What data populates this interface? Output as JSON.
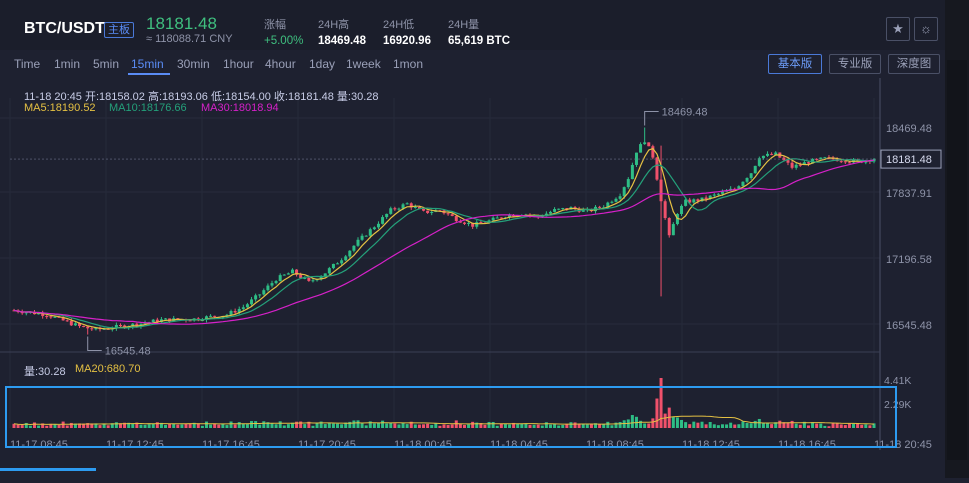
{
  "header": {
    "pair": "BTC/USDT",
    "board": "主板",
    "price": "18181.48",
    "cny": "≈ 118088.71 CNY",
    "stats": [
      {
        "label": "涨幅",
        "value": "+5.00%"
      },
      {
        "label": "24H高",
        "value": "18469.48"
      },
      {
        "label": "24H低",
        "value": "16920.96"
      },
      {
        "label": "24H量",
        "value": "65,619 BTC"
      }
    ],
    "icons": [
      "star-icon",
      "sun-icon"
    ]
  },
  "timeframes": [
    "Time",
    "1min",
    "5min",
    "15min",
    "30min",
    "1hour",
    "4hour",
    "1day",
    "1week",
    "1mon"
  ],
  "active_timeframe": "15min",
  "view_buttons": [
    "基本版",
    "专业版",
    "深度图"
  ],
  "active_view": "基本版",
  "colors": {
    "up": "#2ebd85",
    "down": "#f0516b",
    "ma5": "#e5c143",
    "ma10": "#24a07a",
    "ma30": "#d521c8",
    "ma20": "#e5c143",
    "accent": "#2d9bf0"
  },
  "chart_data": {
    "type": "candlestick",
    "ohlc_label": "11-18 20:45   开:18158.02  高:18193.06  低:18154.00  收:18181.48  量:30.28",
    "ma_legend": [
      {
        "name": "MA5",
        "value": "MA5:18190.52"
      },
      {
        "name": "MA10",
        "value": "MA10:18176.66"
      },
      {
        "name": "MA30",
        "value": "MA30:18018.94"
      }
    ],
    "y_ticks": [
      "18469.48",
      "17837.91",
      "17196.58",
      "16545.48"
    ],
    "ylim": [
      16420,
      18650
    ],
    "current_price_label": "18181.48",
    "high_annotation": "18469.48",
    "low_annotation": "16545.48",
    "x_ticks": [
      "11-17 08:45",
      "11-17 12:45",
      "11-17 16:45",
      "11-17 20:45",
      "11-18 00:45",
      "11-18 04:45",
      "11-18 08:45",
      "11-18 12:45",
      "11-18 16:45",
      "11-18 20:45"
    ],
    "volume_legend": {
      "vol": "量:30.28",
      "ma20": "MA20:680.70"
    },
    "volume_ticks": [
      "4.41K",
      "2.29K"
    ],
    "volume_max": 4410,
    "price_path": [
      [
        0,
        16770
      ],
      [
        8,
        16730
      ],
      [
        16,
        16620
      ],
      [
        20,
        16590
      ],
      [
        28,
        16630
      ],
      [
        36,
        16680
      ],
      [
        44,
        16690
      ],
      [
        52,
        16730
      ],
      [
        56,
        16800
      ],
      [
        60,
        16920
      ],
      [
        64,
        17060
      ],
      [
        68,
        17130
      ],
      [
        72,
        17030
      ],
      [
        76,
        17120
      ],
      [
        80,
        17250
      ],
      [
        84,
        17410
      ],
      [
        88,
        17550
      ],
      [
        92,
        17700
      ],
      [
        96,
        17760
      ],
      [
        100,
        17680
      ],
      [
        104,
        17700
      ],
      [
        108,
        17620
      ],
      [
        112,
        17560
      ],
      [
        116,
        17600
      ],
      [
        120,
        17650
      ],
      [
        124,
        17670
      ],
      [
        128,
        17640
      ],
      [
        132,
        17700
      ],
      [
        136,
        17720
      ],
      [
        140,
        17690
      ],
      [
        144,
        17740
      ],
      [
        148,
        17850
      ],
      [
        150,
        18000
      ],
      [
        152,
        18250
      ],
      [
        154,
        18350
      ],
      [
        156,
        18200
      ],
      [
        158,
        17800
      ],
      [
        160,
        17450
      ],
      [
        162,
        17680
      ],
      [
        164,
        17780
      ],
      [
        168,
        17800
      ],
      [
        172,
        17850
      ],
      [
        176,
        17900
      ],
      [
        180,
        18050
      ],
      [
        182,
        18200
      ],
      [
        186,
        18220
      ],
      [
        190,
        18100
      ],
      [
        194,
        18150
      ],
      [
        198,
        18180
      ],
      [
        202,
        18170
      ],
      [
        206,
        18150
      ],
      [
        210,
        18181
      ]
    ],
    "candle_count": 211
  }
}
